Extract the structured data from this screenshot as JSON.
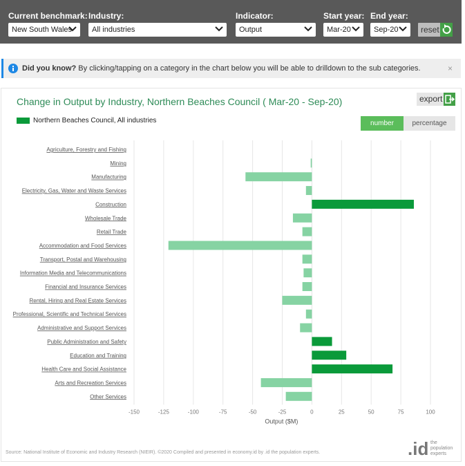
{
  "controls": {
    "benchmark": {
      "label": "Current benchmark:",
      "value": "New South Wales"
    },
    "industry": {
      "label": "Industry:",
      "value": "All industries"
    },
    "indicator": {
      "label": "Indicator:",
      "value": "Output"
    },
    "start_year": {
      "label": "Start year:",
      "value": "Mar-20"
    },
    "end_year": {
      "label": "End year:",
      "value": "Sep-20"
    },
    "reset_label": "reset"
  },
  "notice": {
    "title": "Did you know?",
    "text": "By clicking/tapping on a category in the chart below you will be able to drilldown to the sub categories.",
    "close": "×"
  },
  "header": {
    "title": "Change in Output by Industry, Northern Beaches Council ( Mar-20 - Sep-20)",
    "export_label": "export",
    "legend_label": "Northern Beaches Council, All industries",
    "toggle_number": "number",
    "toggle_percentage": "percentage"
  },
  "footer": {
    "source": "Source: National Institute of Economic and Industry Research (NIEIR). ©2020 Compiled and presented in economy.id by .id the population experts.",
    "logo_text": ".id",
    "logo_tagline": [
      "the",
      "population",
      "experts"
    ]
  },
  "colors": {
    "positive": "#0a9a3a",
    "negative": "#86d3a3",
    "title": "#2e8b57",
    "toggle_active": "#5bbd5b",
    "topbar": "#595959"
  },
  "chart_data": {
    "type": "bar",
    "orientation": "horizontal",
    "title": "Change in Output by Industry, Northern Beaches Council ( Mar-20 - Sep-20)",
    "xlabel": "Output ($M)",
    "xlim": [
      -150,
      100
    ],
    "xticks": [
      -150,
      -125,
      -100,
      -75,
      -50,
      -25,
      0,
      25,
      50,
      75,
      100
    ],
    "grid": true,
    "series": [
      {
        "name": "Northern Beaches Council, All industries"
      }
    ],
    "categories": [
      "Agriculture, Forestry and Fishing",
      "Mining",
      "Manufacturing",
      "Electricity, Gas, Water and Waste Services",
      "Construction",
      "Wholesale Trade",
      "Retail Trade",
      "Accommodation and Food Services",
      "Transport, Postal and Warehousing",
      "Information Media and Telecommunications",
      "Financial and Insurance Services",
      "Rental, Hiring and Real Estate Services",
      "Professional, Scientific and Technical Services",
      "Administrative and Support Services",
      "Public Administration and Safety",
      "Education and Training",
      "Health Care and Social Assistance",
      "Arts and Recreation Services",
      "Other Services"
    ],
    "values": [
      0,
      -1,
      -56,
      -5,
      86,
      -16,
      -8,
      -121,
      -8,
      -7,
      -8,
      -25,
      -5,
      -10,
      17,
      29,
      68,
      -43,
      -22
    ]
  }
}
